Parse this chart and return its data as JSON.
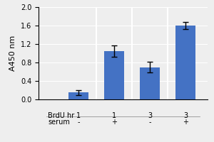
{
  "bar_values": [
    0.15,
    1.05,
    0.7,
    1.6
  ],
  "bar_errors": [
    0.05,
    0.12,
    0.12,
    0.07
  ],
  "bar_color": "#4472C4",
  "ylim": [
    0,
    2.0
  ],
  "yticks": [
    0,
    0.4,
    0.8,
    1.2,
    1.6,
    2.0
  ],
  "ylabel": "A450 nm",
  "brdu_labels": [
    "1",
    "1",
    "3",
    "3"
  ],
  "serum_labels": [
    "-",
    "+",
    "-",
    "+"
  ],
  "row1_label": "BrdU hr",
  "row2_label": "serum",
  "bar_width": 0.55,
  "background_color": "#eeeeee",
  "ylabel_fontsize": 8,
  "tick_fontsize": 7,
  "label_fontsize": 7
}
